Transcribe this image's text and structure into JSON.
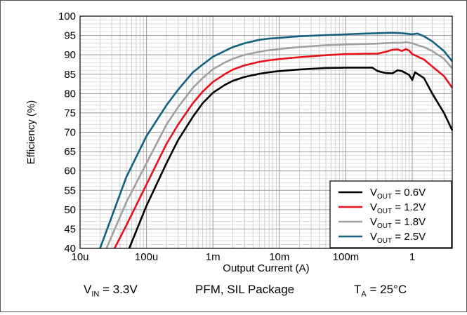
{
  "chart_data": {
    "type": "line",
    "xscale": "log",
    "xlim": [
      1e-05,
      4
    ],
    "ylim": [
      40,
      100
    ],
    "xlabel": "Output Current (A)",
    "ylabel": "Efficiency (%)",
    "xtick_labels": [
      "10u",
      "100u",
      "1m",
      "10m",
      "100m",
      "1"
    ],
    "ytick_labels": [
      "40",
      "45",
      "50",
      "55",
      "60",
      "65",
      "70",
      "75",
      "80",
      "85",
      "90",
      "95",
      "100"
    ],
    "grid": true,
    "legend_position": "bottom-right",
    "series": [
      {
        "name": "VOUT = 0.6V",
        "name_main": "V",
        "name_sub": "OUT",
        "name_rest": " = 0.6V",
        "color": "#000000",
        "points": [
          [
            5.5e-05,
            40
          ],
          [
            0.0001,
            51
          ],
          [
            0.0002,
            62
          ],
          [
            0.0003,
            68
          ],
          [
            0.0005,
            74
          ],
          [
            0.0007,
            77.5
          ],
          [
            0.001,
            80.2
          ],
          [
            0.0015,
            82.2
          ],
          [
            0.002,
            83.3
          ],
          [
            0.003,
            84.3
          ],
          [
            0.005,
            85.1
          ],
          [
            0.007,
            85.5
          ],
          [
            0.01,
            85.8
          ],
          [
            0.02,
            86.2
          ],
          [
            0.05,
            86.6
          ],
          [
            0.1,
            86.7
          ],
          [
            0.2,
            86.7
          ],
          [
            0.25,
            86.7
          ],
          [
            0.3,
            85.8
          ],
          [
            0.4,
            85.3
          ],
          [
            0.5,
            85.2
          ],
          [
            0.6,
            86.0
          ],
          [
            0.7,
            85.8
          ],
          [
            0.9,
            84.8
          ],
          [
            1.0,
            83.5
          ],
          [
            1.1,
            85.5
          ],
          [
            1.5,
            84
          ],
          [
            2,
            80
          ],
          [
            3,
            75
          ],
          [
            4,
            70.5
          ]
        ]
      },
      {
        "name": "VOUT = 1.2V",
        "name_main": "V",
        "name_sub": "OUT",
        "name_rest": " = 1.2V",
        "color": "#e8101a",
        "points": [
          [
            3.3e-05,
            40
          ],
          [
            5e-05,
            46
          ],
          [
            0.0001,
            56.5
          ],
          [
            0.0002,
            67
          ],
          [
            0.0003,
            72
          ],
          [
            0.0005,
            77.5
          ],
          [
            0.0007,
            80.5
          ],
          [
            0.001,
            83
          ],
          [
            0.0015,
            85
          ],
          [
            0.002,
            86.2
          ],
          [
            0.003,
            87.3
          ],
          [
            0.005,
            88.2
          ],
          [
            0.007,
            88.6
          ],
          [
            0.01,
            88.9
          ],
          [
            0.02,
            89.4
          ],
          [
            0.05,
            89.9
          ],
          [
            0.1,
            90.2
          ],
          [
            0.2,
            90.3
          ],
          [
            0.3,
            90.3
          ],
          [
            0.4,
            90.8
          ],
          [
            0.5,
            91.3
          ],
          [
            0.6,
            91.4
          ],
          [
            0.7,
            91.0
          ],
          [
            0.8,
            91.5
          ],
          [
            0.9,
            91.1
          ],
          [
            1.0,
            90.2
          ],
          [
            1.5,
            88.8
          ],
          [
            2,
            87
          ],
          [
            3,
            84.5
          ],
          [
            4,
            81.5
          ]
        ]
      },
      {
        "name": "VOUT = 1.8V",
        "name_main": "V",
        "name_sub": "OUT",
        "name_rest": " = 1.8V",
        "color": "#a0a0a0",
        "points": [
          [
            2.5e-05,
            40
          ],
          [
            5e-05,
            52
          ],
          [
            0.0001,
            62
          ],
          [
            0.0002,
            72
          ],
          [
            0.0003,
            76.5
          ],
          [
            0.0005,
            81.5
          ],
          [
            0.0007,
            84
          ],
          [
            0.001,
            86.3
          ],
          [
            0.0015,
            88
          ],
          [
            0.002,
            89
          ],
          [
            0.003,
            90
          ],
          [
            0.005,
            90.8
          ],
          [
            0.007,
            91.2
          ],
          [
            0.01,
            91.5
          ],
          [
            0.02,
            92
          ],
          [
            0.05,
            92.5
          ],
          [
            0.1,
            92.7
          ],
          [
            0.2,
            92.8
          ],
          [
            0.3,
            92.9
          ],
          [
            0.5,
            93.1
          ],
          [
            0.7,
            93.1
          ],
          [
            0.8,
            93.3
          ],
          [
            1.0,
            93.0
          ],
          [
            1.2,
            92.5
          ],
          [
            1.5,
            92.0
          ],
          [
            2,
            91
          ],
          [
            3,
            89
          ],
          [
            4,
            86.5
          ]
        ]
      },
      {
        "name": "VOUT = 2.5V",
        "name_main": "V",
        "name_sub": "OUT",
        "name_rest": " = 2.5V",
        "color": "#14607f",
        "points": [
          [
            2e-05,
            40
          ],
          [
            5e-05,
            58.5
          ],
          [
            0.0001,
            69
          ],
          [
            0.0002,
            77
          ],
          [
            0.0003,
            81
          ],
          [
            0.0005,
            85.5
          ],
          [
            0.0007,
            87.5
          ],
          [
            0.001,
            89.5
          ],
          [
            0.0015,
            91
          ],
          [
            0.002,
            92
          ],
          [
            0.003,
            93
          ],
          [
            0.005,
            93.9
          ],
          [
            0.007,
            94.2
          ],
          [
            0.01,
            94.4
          ],
          [
            0.02,
            94.8
          ],
          [
            0.05,
            95.1
          ],
          [
            0.1,
            95.3
          ],
          [
            0.2,
            95.5
          ],
          [
            0.3,
            95.6
          ],
          [
            0.5,
            95.7
          ],
          [
            0.7,
            95.6
          ],
          [
            1.0,
            95.3
          ],
          [
            1.2,
            95.5
          ],
          [
            1.5,
            94.8
          ],
          [
            2,
            93.5
          ],
          [
            3,
            91
          ],
          [
            4,
            88.3
          ]
        ]
      }
    ]
  },
  "footer": {
    "vin_main": "V",
    "vin_sub": "IN",
    "vin_rest": " = 3.3V",
    "mode": "PFM, SIL Package",
    "ta_main": "T",
    "ta_sub": "A",
    "ta_rest": " = 25°C"
  }
}
